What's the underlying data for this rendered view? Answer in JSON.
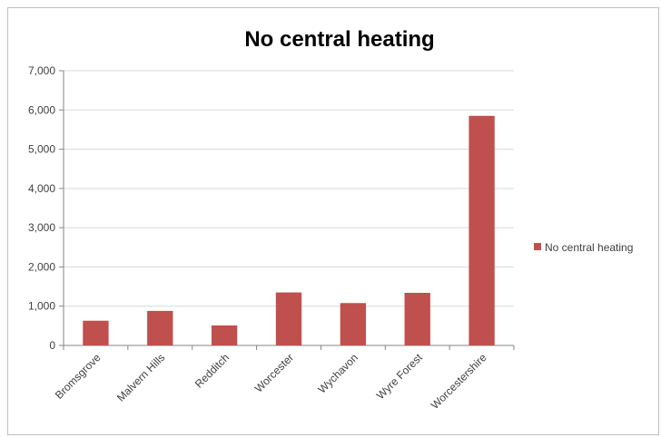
{
  "chart_data": {
    "type": "bar",
    "title": "No central heating",
    "xlabel": "",
    "ylabel": "",
    "categories": [
      "Bromsgrove",
      "Malvern Hills",
      "Redditch",
      "Worcester",
      "Wychavon",
      "Wyre Forest",
      "Worcestershire"
    ],
    "series": [
      {
        "name": "No central heating",
        "values": [
          630,
          880,
          510,
          1350,
          1080,
          1340,
          5850
        ],
        "color": "#c0504d"
      }
    ],
    "ylim": [
      0,
      7000
    ],
    "yticks": [
      "0",
      "1,000",
      "2,000",
      "3,000",
      "4,000",
      "5,000",
      "6,000",
      "7,000"
    ],
    "grid": true,
    "legend_position": "right"
  }
}
